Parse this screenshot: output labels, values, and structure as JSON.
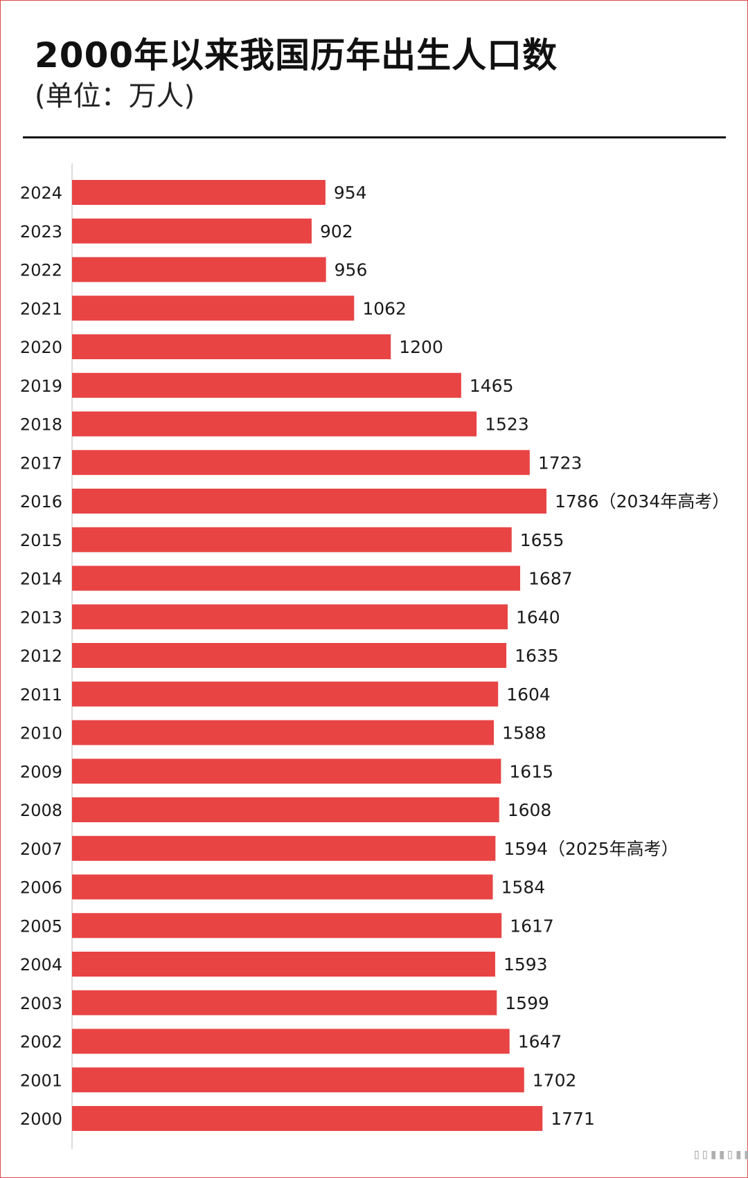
{
  "header": {
    "title": "2000年以来我国历年出生人口数",
    "subtitle": "(单位：万人)"
  },
  "chart_data": {
    "type": "bar",
    "orientation": "horizontal",
    "title": "2000年以来我国历年出生人口数",
    "subtitle": "(单位：万人)",
    "categories": [
      "2024",
      "2023",
      "2022",
      "2021",
      "2020",
      "2019",
      "2018",
      "2017",
      "2016",
      "2015",
      "2014",
      "2013",
      "2012",
      "2011",
      "2010",
      "2009",
      "2008",
      "2007",
      "2006",
      "2005",
      "2004",
      "2003",
      "2002",
      "2001",
      "2000"
    ],
    "values": [
      954,
      902,
      956,
      1062,
      1200,
      1465,
      1523,
      1723,
      1786,
      1655,
      1687,
      1640,
      1635,
      1604,
      1588,
      1615,
      1608,
      1594,
      1584,
      1617,
      1593,
      1599,
      1647,
      1702,
      1771
    ],
    "annotations": [
      "",
      "",
      "",
      "",
      "",
      "",
      "",
      "",
      "（2034年高考）",
      "",
      "",
      "",
      "",
      "",
      "",
      "",
      "",
      "（2025年高考）",
      "",
      "",
      "",
      "",
      "",
      "",
      ""
    ],
    "bar_color": "#e84444",
    "xlim": [
      0,
      1786
    ],
    "grid": false,
    "legend": "none"
  }
}
